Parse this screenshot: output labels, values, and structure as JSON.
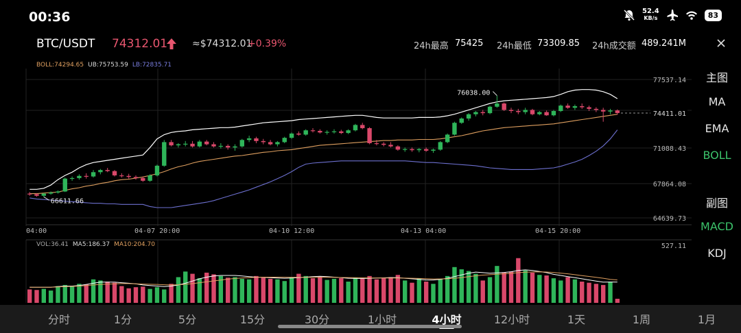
{
  "status_bar": {
    "time": "00:36",
    "net_speed_value": "52.4",
    "net_speed_unit": "KB/s",
    "battery": "83"
  },
  "header": {
    "pair": "BTC/USDT",
    "price": "74312.01",
    "approx_price": "≈$74312.01",
    "change": "+0.39%",
    "high_label": "24h最高",
    "high_value": "75425",
    "low_label": "24h最低",
    "low_value": "73309.85",
    "volume_label": "24h成交额",
    "volume_value": "489.241M"
  },
  "boll_legend": {
    "boll": "BOLL:74294.65",
    "ub": "UB:75753.59",
    "lb": "LB:72835.71"
  },
  "volume_legend": {
    "vol": "VOL:36.41",
    "ma5": "MA5:186.37",
    "ma10": "MA10:204.70"
  },
  "side_menu": {
    "main_title": "主图",
    "ma": "MA",
    "ema": "EMA",
    "boll": "BOLL",
    "sub_title": "副图",
    "macd": "MACD",
    "kdj": "KDJ"
  },
  "price_axis": [
    "77537.14",
    "74411.01",
    "71088.43",
    "67864.08",
    "64639.73"
  ],
  "current_price_tag": "74411.01",
  "volume_axis_max": "527.11",
  "time_axis": [
    "04:00",
    "04-07  20:00",
    "04-10  12:00",
    "04-13  04:00",
    "04-15  20:00"
  ],
  "annotations": {
    "high_marker": "76038.00",
    "low_marker": "66611.66"
  },
  "tabs": [
    {
      "label": "分时",
      "active": false
    },
    {
      "label": "1分",
      "active": false
    },
    {
      "label": "5分",
      "active": false
    },
    {
      "label": "15分",
      "active": false
    },
    {
      "label": "30分",
      "active": false
    },
    {
      "label": "1小时",
      "active": false
    },
    {
      "label": "4小时",
      "active": true
    },
    {
      "label": "12小时",
      "active": false
    },
    {
      "label": "1天",
      "active": false
    },
    {
      "label": "1周",
      "active": false
    },
    {
      "label": "1月",
      "active": false
    }
  ],
  "colors": {
    "up": "#2fb55a",
    "down": "#d9486a",
    "boll_mid": "#e0a060",
    "boll_upper": "#ffffff",
    "boll_lower": "#6d70d0",
    "accent_green": "#3cc36b"
  },
  "chart_data": {
    "type": "candlestick",
    "interval": "4小时",
    "y_range": [
      64639.73,
      77537.14
    ],
    "candles": [
      {
        "o": 66900,
        "h": 67050,
        "l": 66700,
        "c": 66850
      },
      {
        "o": 66850,
        "h": 66950,
        "l": 66611.66,
        "c": 66700
      },
      {
        "o": 66700,
        "h": 66950,
        "l": 66600,
        "c": 66900
      },
      {
        "o": 66900,
        "h": 67100,
        "l": 66800,
        "c": 67000
      },
      {
        "o": 67000,
        "h": 67200,
        "l": 66900,
        "c": 67100
      },
      {
        "o": 67100,
        "h": 68400,
        "l": 67050,
        "c": 68300
      },
      {
        "o": 68300,
        "h": 68500,
        "l": 68100,
        "c": 68350
      },
      {
        "o": 68350,
        "h": 68700,
        "l": 68200,
        "c": 68550
      },
      {
        "o": 68550,
        "h": 68800,
        "l": 68300,
        "c": 68500
      },
      {
        "o": 68500,
        "h": 69100,
        "l": 68400,
        "c": 68900
      },
      {
        "o": 68900,
        "h": 69200,
        "l": 68700,
        "c": 69100
      },
      {
        "o": 69100,
        "h": 69300,
        "l": 68900,
        "c": 69000
      },
      {
        "o": 69000,
        "h": 69100,
        "l": 68500,
        "c": 68600
      },
      {
        "o": 68600,
        "h": 68800,
        "l": 68400,
        "c": 68550
      },
      {
        "o": 68550,
        "h": 68750,
        "l": 68300,
        "c": 68450
      },
      {
        "o": 68450,
        "h": 68600,
        "l": 68200,
        "c": 68350
      },
      {
        "o": 68350,
        "h": 68500,
        "l": 68000,
        "c": 68100
      },
      {
        "o": 68100,
        "h": 68700,
        "l": 68000,
        "c": 68600
      },
      {
        "o": 68600,
        "h": 69600,
        "l": 68500,
        "c": 69500
      },
      {
        "o": 69500,
        "h": 71900,
        "l": 69400,
        "c": 71700
      },
      {
        "o": 71700,
        "h": 71900,
        "l": 71300,
        "c": 71400
      },
      {
        "o": 71400,
        "h": 71600,
        "l": 71200,
        "c": 71500
      },
      {
        "o": 71500,
        "h": 71800,
        "l": 71300,
        "c": 71550
      },
      {
        "o": 71550,
        "h": 71800,
        "l": 71200,
        "c": 71300
      },
      {
        "o": 71300,
        "h": 71900,
        "l": 71200,
        "c": 71750
      },
      {
        "o": 71750,
        "h": 71900,
        "l": 71400,
        "c": 71500
      },
      {
        "o": 71500,
        "h": 71700,
        "l": 71200,
        "c": 71300
      },
      {
        "o": 71300,
        "h": 71600,
        "l": 71100,
        "c": 71350
      },
      {
        "o": 71350,
        "h": 71500,
        "l": 71000,
        "c": 71200
      },
      {
        "o": 71200,
        "h": 71500,
        "l": 70900,
        "c": 71300
      },
      {
        "o": 71300,
        "h": 72000,
        "l": 71200,
        "c": 71900
      },
      {
        "o": 71900,
        "h": 72300,
        "l": 71700,
        "c": 72050
      },
      {
        "o": 72050,
        "h": 72200,
        "l": 71600,
        "c": 71800
      },
      {
        "o": 71800,
        "h": 72000,
        "l": 71500,
        "c": 71700
      },
      {
        "o": 71700,
        "h": 71900,
        "l": 71400,
        "c": 71500
      },
      {
        "o": 71500,
        "h": 71800,
        "l": 71300,
        "c": 71700
      },
      {
        "o": 71700,
        "h": 72200,
        "l": 71600,
        "c": 72100
      },
      {
        "o": 72100,
        "h": 72600,
        "l": 72000,
        "c": 72500
      },
      {
        "o": 72500,
        "h": 72700,
        "l": 72300,
        "c": 72400
      },
      {
        "o": 72400,
        "h": 72900,
        "l": 72300,
        "c": 72800
      },
      {
        "o": 72800,
        "h": 73000,
        "l": 72600,
        "c": 72750
      },
      {
        "o": 72750,
        "h": 72900,
        "l": 72500,
        "c": 72600
      },
      {
        "o": 72600,
        "h": 72800,
        "l": 72400,
        "c": 72650
      },
      {
        "o": 72650,
        "h": 72900,
        "l": 72500,
        "c": 72700
      },
      {
        "o": 72700,
        "h": 72850,
        "l": 72450,
        "c": 72550
      },
      {
        "o": 72550,
        "h": 72900,
        "l": 72450,
        "c": 72800
      },
      {
        "o": 72800,
        "h": 73400,
        "l": 72700,
        "c": 73300
      },
      {
        "o": 73300,
        "h": 73500,
        "l": 72900,
        "c": 73000
      },
      {
        "o": 73000,
        "h": 73100,
        "l": 71500,
        "c": 71600
      },
      {
        "o": 71600,
        "h": 71900,
        "l": 71400,
        "c": 71550
      },
      {
        "o": 71550,
        "h": 71700,
        "l": 71300,
        "c": 71450
      },
      {
        "o": 71450,
        "h": 71700,
        "l": 71200,
        "c": 71300
      },
      {
        "o": 71300,
        "h": 71400,
        "l": 70900,
        "c": 71000
      },
      {
        "o": 71000,
        "h": 71200,
        "l": 70800,
        "c": 71050
      },
      {
        "o": 71050,
        "h": 71200,
        "l": 70800,
        "c": 70950
      },
      {
        "o": 70950,
        "h": 71150,
        "l": 70750,
        "c": 71050
      },
      {
        "o": 71050,
        "h": 71200,
        "l": 70800,
        "c": 70900
      },
      {
        "o": 70900,
        "h": 71100,
        "l": 70700,
        "c": 71000
      },
      {
        "o": 71000,
        "h": 71800,
        "l": 70900,
        "c": 71700
      },
      {
        "o": 71700,
        "h": 72500,
        "l": 71600,
        "c": 72400
      },
      {
        "o": 72400,
        "h": 73600,
        "l": 72300,
        "c": 73500
      },
      {
        "o": 73500,
        "h": 74000,
        "l": 73400,
        "c": 73900
      },
      {
        "o": 73900,
        "h": 74400,
        "l": 73700,
        "c": 74300
      },
      {
        "o": 74300,
        "h": 74600,
        "l": 74100,
        "c": 74500
      },
      {
        "o": 74500,
        "h": 74700,
        "l": 74200,
        "c": 74400
      },
      {
        "o": 74400,
        "h": 75100,
        "l": 74300,
        "c": 75000
      },
      {
        "o": 75000,
        "h": 76038,
        "l": 74900,
        "c": 75300
      },
      {
        "o": 75300,
        "h": 75400,
        "l": 74600,
        "c": 74700
      },
      {
        "o": 74700,
        "h": 74900,
        "l": 74400,
        "c": 74600
      },
      {
        "o": 74600,
        "h": 74800,
        "l": 74300,
        "c": 74500
      },
      {
        "o": 74500,
        "h": 74900,
        "l": 74300,
        "c": 74700
      },
      {
        "o": 74700,
        "h": 74800,
        "l": 74200,
        "c": 74300
      },
      {
        "o": 74300,
        "h": 74600,
        "l": 74200,
        "c": 74500
      },
      {
        "o": 74500,
        "h": 74650,
        "l": 74150,
        "c": 74200
      },
      {
        "o": 74200,
        "h": 74700,
        "l": 74100,
        "c": 74600
      },
      {
        "o": 74600,
        "h": 75200,
        "l": 74500,
        "c": 75100
      },
      {
        "o": 75100,
        "h": 75300,
        "l": 74800,
        "c": 74900
      },
      {
        "o": 74900,
        "h": 75200,
        "l": 74700,
        "c": 75050
      },
      {
        "o": 75050,
        "h": 75300,
        "l": 74800,
        "c": 74950
      },
      {
        "o": 74950,
        "h": 75100,
        "l": 74600,
        "c": 74800
      },
      {
        "o": 74800,
        "h": 74950,
        "l": 74500,
        "c": 74700
      },
      {
        "o": 74700,
        "h": 74900,
        "l": 73600,
        "c": 74550
      },
      {
        "o": 74550,
        "h": 74800,
        "l": 74300,
        "c": 74650
      },
      {
        "o": 74650,
        "h": 74750,
        "l": 74250,
        "c": 74411.01
      }
    ],
    "boll_upper": [
      67300,
      67300,
      67400,
      67700,
      68200,
      68600,
      68900,
      69300,
      69600,
      69800,
      69900,
      70000,
      70100,
      70200,
      70300,
      70400,
      70500,
      71200,
      72000,
      72400,
      72600,
      72700,
      72750,
      72850,
      72900,
      72950,
      73000,
      73050,
      73050,
      73100,
      73200,
      73300,
      73400,
      73500,
      73550,
      73600,
      73650,
      73700,
      73800,
      73850,
      73900,
      73950,
      74000,
      74050,
      74100,
      74150,
      74200,
      74200,
      74100,
      74000,
      73950,
      73950,
      73950,
      73950,
      73950,
      74000,
      74000,
      74000,
      74050,
      74150,
      74300,
      74500,
      74700,
      74900,
      75100,
      75300,
      75450,
      75550,
      75600,
      75650,
      75700,
      75750,
      75800,
      75850,
      75950,
      76150,
      76400,
      76550,
      76600,
      76600,
      76550,
      76400,
      76150,
      75750
    ],
    "boll_mid": [
      66900,
      66900,
      66950,
      67000,
      67050,
      67200,
      67350,
      67450,
      67600,
      67700,
      67850,
      67950,
      68100,
      68200,
      68250,
      68350,
      68450,
      68600,
      68750,
      68950,
      69200,
      69400,
      69550,
      69750,
      69900,
      70000,
      70100,
      70200,
      70300,
      70400,
      70450,
      70550,
      70650,
      70750,
      70800,
      70900,
      70950,
      71000,
      71100,
      71200,
      71300,
      71400,
      71450,
      71500,
      71550,
      71600,
      71650,
      71700,
      71750,
      71800,
      71850,
      71850,
      71900,
      71900,
      71900,
      71950,
      71950,
      71950,
      72000,
      72100,
      72200,
      72300,
      72450,
      72600,
      72750,
      72850,
      72950,
      73050,
      73100,
      73150,
      73200,
      73250,
      73300,
      73350,
      73400,
      73500,
      73600,
      73700,
      73800,
      73900,
      74000,
      74100,
      74200,
      74294.65
    ],
    "boll_lower": [
      66500,
      66400,
      66350,
      66300,
      66250,
      66200,
      66150,
      66100,
      66050,
      66000,
      66000,
      65950,
      65950,
      65900,
      65900,
      65900,
      65900,
      65700,
      65600,
      65600,
      65600,
      65700,
      65800,
      65900,
      66000,
      66100,
      66250,
      66450,
      66650,
      66850,
      67050,
      67250,
      67500,
      67750,
      68000,
      68300,
      68600,
      68950,
      69350,
      69650,
      69750,
      69800,
      69850,
      69900,
      69950,
      69950,
      69950,
      69950,
      69950,
      69950,
      69950,
      69950,
      69950,
      69950,
      69900,
      69850,
      69800,
      69800,
      69750,
      69700,
      69650,
      69600,
      69550,
      69500,
      69400,
      69300,
      69250,
      69200,
      69150,
      69150,
      69150,
      69150,
      69200,
      69250,
      69300,
      69450,
      69650,
      69850,
      70100,
      70450,
      70850,
      71350,
      72000,
      72835.71
    ],
    "volumes": [
      120,
      115,
      125,
      110,
      150,
      160,
      145,
      170,
      165,
      210,
      200,
      190,
      180,
      150,
      130,
      140,
      145,
      125,
      140,
      120,
      170,
      230,
      280,
      260,
      220,
      270,
      255,
      240,
      225,
      230,
      215,
      210,
      240,
      225,
      215,
      210,
      195,
      230,
      260,
      240,
      220,
      235,
      205,
      215,
      220,
      190,
      225,
      215,
      240,
      210,
      220,
      230,
      250,
      200,
      180,
      220,
      190,
      170,
      210,
      240,
      320,
      300,
      285,
      260,
      200,
      230,
      330,
      270,
      280,
      400,
      290,
      270,
      250,
      245,
      220,
      200,
      230,
      210,
      190,
      180,
      170,
      160,
      190,
      36.41
    ],
    "vol_ma5": [
      140,
      140,
      140,
      140,
      145,
      150,
      150,
      155,
      165,
      175,
      185,
      185,
      185,
      180,
      175,
      170,
      160,
      155,
      150,
      145,
      150,
      160,
      175,
      195,
      215,
      230,
      240,
      245,
      245,
      245,
      240,
      235,
      230,
      228,
      225,
      222,
      220,
      222,
      225,
      230,
      235,
      237,
      235,
      230,
      225,
      220,
      218,
      218,
      220,
      222,
      224,
      226,
      225,
      220,
      215,
      210,
      205,
      205,
      210,
      220,
      235,
      250,
      265,
      275,
      270,
      265,
      268,
      272,
      278,
      290,
      295,
      290,
      280,
      270,
      255,
      245,
      235,
      225,
      215,
      205,
      195,
      185,
      186.37,
      186.37
    ],
    "vol_ma10": [
      140,
      140,
      140,
      140,
      142,
      145,
      147,
      150,
      155,
      160,
      165,
      168,
      170,
      172,
      172,
      170,
      168,
      166,
      165,
      162,
      160,
      162,
      166,
      172,
      180,
      188,
      196,
      204,
      212,
      218,
      222,
      226,
      228,
      230,
      230,
      230,
      229,
      228,
      228,
      228,
      228,
      229,
      229,
      228,
      227,
      226,
      225,
      224,
      223,
      222,
      222,
      222,
      222,
      221,
      220,
      218,
      216,
      214,
      214,
      216,
      220,
      226,
      234,
      242,
      248,
      252,
      256,
      260,
      264,
      270,
      274,
      276,
      277,
      276,
      272,
      266,
      260,
      252,
      244,
      236,
      228,
      220,
      210,
      204.7
    ]
  }
}
